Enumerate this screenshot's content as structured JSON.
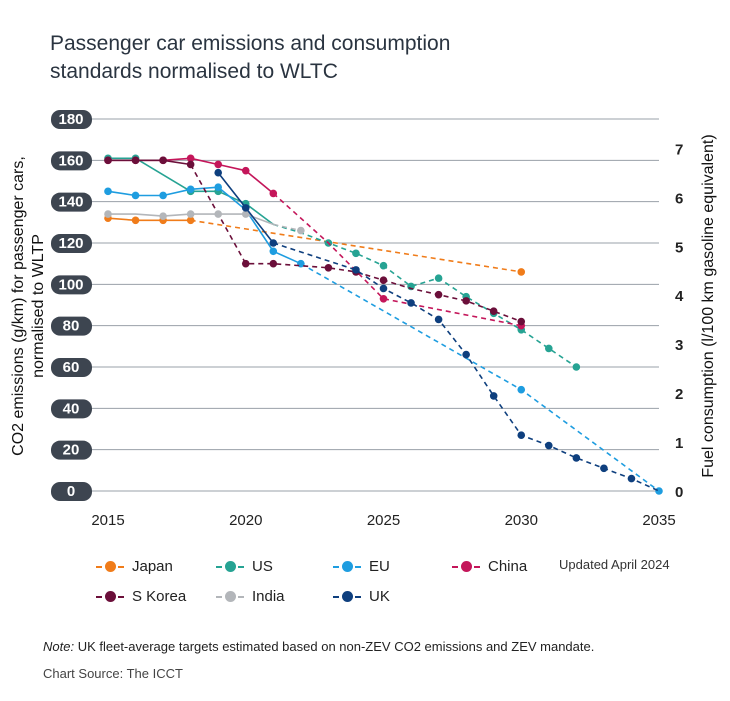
{
  "title_line1": "Passenger car emissions and consumption",
  "title_line2": "standards normalised to WLTC",
  "updated": "Updated April 2024",
  "note_label": "Note:",
  "note_text": " UK fleet-average targets estimated based on non-ZEV CO2 emissions and ZEV mandate.",
  "source": "Chart Source: The ICCT",
  "chart_data": {
    "type": "line",
    "title": "Passenger car emissions and consumption standards normalised to WLTC",
    "ylabel_line1": "CO2 emissions (g/km) for passenger cars,",
    "ylabel_line2": "normalised to WLTP",
    "y2label": "Fuel consumption (l/100 km gasoline equivalent)",
    "xlim": [
      2015,
      2035
    ],
    "ylim": [
      0,
      180
    ],
    "y2lim": [
      0,
      7.6
    ],
    "x_ticks": [
      2015,
      2020,
      2025,
      2030,
      2035
    ],
    "y_ticks": [
      0,
      20,
      40,
      60,
      80,
      100,
      120,
      140,
      160,
      180
    ],
    "y2_ticks": [
      0,
      1,
      2,
      3,
      4,
      5,
      6,
      7
    ],
    "grid": "horizontal",
    "legend_position": "bottom",
    "series": [
      {
        "name": "Japan",
        "color": "#f07c1a",
        "solid": [
          [
            2015,
            132
          ],
          [
            2016,
            131
          ],
          [
            2017,
            131
          ],
          [
            2018,
            131
          ]
        ],
        "dashed": [
          [
            2018,
            131
          ],
          [
            2030,
            106
          ]
        ],
        "points": [
          [
            2015,
            132
          ],
          [
            2016,
            131
          ],
          [
            2017,
            131
          ],
          [
            2018,
            131
          ],
          [
            2030,
            106
          ]
        ]
      },
      {
        "name": "US",
        "color": "#26a393",
        "solid": [
          [
            2015,
            161
          ],
          [
            2016,
            161
          ],
          [
            2018,
            145
          ],
          [
            2019,
            145
          ],
          [
            2020,
            139
          ],
          [
            2021,
            129
          ]
        ],
        "dashed": [
          [
            2021,
            129
          ],
          [
            2022,
            125
          ],
          [
            2023,
            120
          ],
          [
            2024,
            115
          ],
          [
            2025,
            109
          ],
          [
            2026,
            99
          ],
          [
            2027,
            103
          ],
          [
            2028,
            94
          ],
          [
            2029,
            86
          ],
          [
            2030,
            78
          ],
          [
            2031,
            69
          ],
          [
            2032,
            60
          ]
        ],
        "points": [
          [
            2015,
            161
          ],
          [
            2016,
            161
          ],
          [
            2018,
            145
          ],
          [
            2019,
            145
          ],
          [
            2020,
            139
          ],
          [
            2023,
            120
          ],
          [
            2024,
            115
          ],
          [
            2025,
            109
          ],
          [
            2026,
            99
          ],
          [
            2027,
            103
          ],
          [
            2028,
            94
          ],
          [
            2029,
            86
          ],
          [
            2030,
            78
          ],
          [
            2031,
            69
          ],
          [
            2032,
            60
          ]
        ]
      },
      {
        "name": "EU",
        "color": "#1e9de0",
        "solid": [
          [
            2015,
            145
          ],
          [
            2016,
            143
          ],
          [
            2017,
            143
          ],
          [
            2018,
            146
          ],
          [
            2019,
            147
          ],
          [
            2020,
            136
          ],
          [
            2021,
            116
          ],
          [
            2022,
            110
          ]
        ],
        "dashed": [
          [
            2022,
            110
          ],
          [
            2030,
            49
          ],
          [
            2035,
            0
          ]
        ],
        "points": [
          [
            2015,
            145
          ],
          [
            2016,
            143
          ],
          [
            2017,
            143
          ],
          [
            2018,
            146
          ],
          [
            2019,
            147
          ],
          [
            2021,
            116
          ],
          [
            2022,
            110
          ],
          [
            2030,
            49
          ],
          [
            2035,
            0
          ]
        ]
      },
      {
        "name": "China",
        "color": "#c4165a",
        "solid": [
          [
            2015,
            160
          ],
          [
            2016,
            160
          ],
          [
            2017,
            160
          ],
          [
            2018,
            161
          ],
          [
            2019,
            158
          ],
          [
            2020,
            155
          ],
          [
            2021,
            144
          ]
        ],
        "dashed": [
          [
            2021,
            144
          ],
          [
            2023,
            120
          ],
          [
            2025,
            93
          ],
          [
            2030,
            80
          ]
        ],
        "points": [
          [
            2015,
            160
          ],
          [
            2016,
            160
          ],
          [
            2017,
            160
          ],
          [
            2018,
            161
          ],
          [
            2019,
            158
          ],
          [
            2020,
            155
          ],
          [
            2021,
            144
          ],
          [
            2025,
            93
          ],
          [
            2030,
            80
          ]
        ]
      },
      {
        "name": "S Korea",
        "color": "#6b0f3a",
        "solid": [
          [
            2015,
            160
          ],
          [
            2016,
            160
          ],
          [
            2017,
            160
          ],
          [
            2018,
            158
          ]
        ],
        "dashed": [
          [
            2018,
            158
          ],
          [
            2020,
            110
          ],
          [
            2021,
            110
          ],
          [
            2023,
            108
          ],
          [
            2024,
            106
          ],
          [
            2025,
            102
          ],
          [
            2026,
            98
          ],
          [
            2027,
            95
          ],
          [
            2028,
            92
          ],
          [
            2029,
            87
          ],
          [
            2030,
            82
          ]
        ],
        "points": [
          [
            2015,
            160
          ],
          [
            2016,
            160
          ],
          [
            2017,
            160
          ],
          [
            2018,
            158
          ],
          [
            2020,
            110
          ],
          [
            2021,
            110
          ],
          [
            2023,
            108
          ],
          [
            2024,
            106
          ],
          [
            2025,
            102
          ],
          [
            2027,
            95
          ],
          [
            2028,
            92
          ],
          [
            2029,
            87
          ],
          [
            2030,
            82
          ]
        ]
      },
      {
        "name": "India",
        "color": "#b3b6ba",
        "solid": [
          [
            2015,
            134
          ],
          [
            2016,
            134
          ],
          [
            2017,
            133
          ],
          [
            2018,
            134
          ],
          [
            2019,
            134
          ],
          [
            2020,
            134
          ],
          [
            2021,
            129
          ]
        ],
        "dashed": [
          [
            2021,
            129
          ],
          [
            2022,
            126
          ]
        ],
        "points": [
          [
            2015,
            134
          ],
          [
            2017,
            133
          ],
          [
            2018,
            134
          ],
          [
            2019,
            134
          ],
          [
            2020,
            134
          ],
          [
            2022,
            126
          ]
        ]
      },
      {
        "name": "UK",
        "color": "#0e3f7e",
        "solid": [
          [
            2019,
            154
          ],
          [
            2020,
            137
          ],
          [
            2021,
            120
          ]
        ],
        "dashed": [
          [
            2021,
            120
          ],
          [
            2024,
            107
          ],
          [
            2025,
            98
          ],
          [
            2026,
            91
          ],
          [
            2027,
            83
          ],
          [
            2028,
            66
          ],
          [
            2029,
            46
          ],
          [
            2030,
            27
          ],
          [
            2031,
            22
          ],
          [
            2032,
            16
          ],
          [
            2033,
            11
          ],
          [
            2034,
            6
          ],
          [
            2035,
            0
          ]
        ],
        "points": [
          [
            2019,
            154
          ],
          [
            2020,
            137
          ],
          [
            2021,
            120
          ],
          [
            2024,
            107
          ],
          [
            2025,
            98
          ],
          [
            2026,
            91
          ],
          [
            2027,
            83
          ],
          [
            2028,
            66
          ],
          [
            2029,
            46
          ],
          [
            2030,
            27
          ],
          [
            2031,
            22
          ],
          [
            2032,
            16
          ],
          [
            2033,
            11
          ],
          [
            2034,
            6
          ]
        ]
      }
    ]
  },
  "legend": [
    {
      "name": "Japan",
      "color": "#f07c1a"
    },
    {
      "name": "US",
      "color": "#26a393"
    },
    {
      "name": "EU",
      "color": "#1e9de0"
    },
    {
      "name": "China",
      "color": "#c4165a"
    },
    {
      "name": "S Korea",
      "color": "#6b0f3a"
    },
    {
      "name": "India",
      "color": "#b3b6ba"
    },
    {
      "name": "UK",
      "color": "#0e3f7e"
    }
  ]
}
